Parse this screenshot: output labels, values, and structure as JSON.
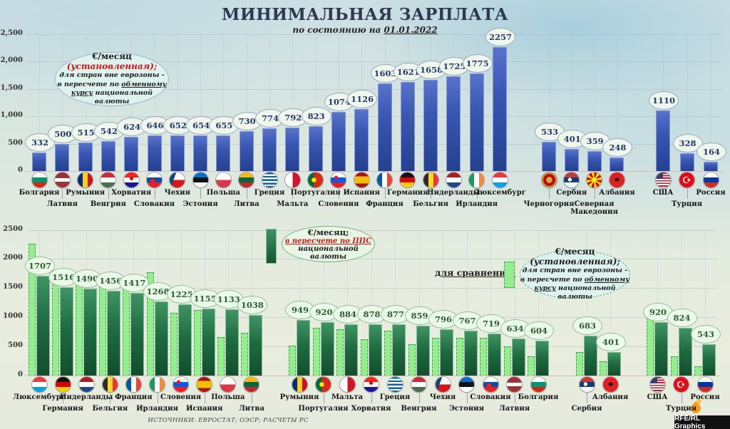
{
  "header": {
    "title": "МИНИМАЛЬНАЯ ЗАРПЛАТА",
    "subtitle_prefix": "по состоянию на ",
    "subtitle_date": "01.01.2022"
  },
  "legend_established": {
    "currency": "€/месяц ",
    "qualifier": "(установленная);",
    "line2": "для стран вне еврозоны -",
    "line3_pre": "в пересчете по ",
    "line3_u": "обменному",
    "line4_u": "курсу",
    "line4_post": " национальной валюты"
  },
  "legend_pps": {
    "currency": "€/месяц;",
    "highlight": "в пересчете по ППС",
    "line3": "национальной валюты"
  },
  "compare_label": "для сравнения:",
  "footer": {
    "sources": "ИСТОЧНИКИ: ЕВРОСТАТ; ОЭСР; РАСЧЕТЫ РС",
    "credit": "RFE/RL Graphics"
  },
  "colors": {
    "bar_established": "#3a58b4",
    "bar_pps": "#1f6c41",
    "bar_compare": "#94ee8e",
    "accent_red": "#cc1416"
  },
  "chart_data": [
    {
      "type": "bar",
      "title": "€/месяц (установленная); для стран вне еврозоны - в пересчете по обменному курсу национальной валюты",
      "xlabel": "",
      "ylabel": "€/месяц",
      "ylim": [
        0,
        2500
      ],
      "ytick_values": [
        0,
        500,
        1000,
        1500,
        2000,
        2500
      ],
      "yticks": [
        "0",
        "500",
        "1,000",
        "1,500",
        "2,000",
        "2,500"
      ],
      "grid": "dotted horizontal",
      "countries": [
        {
          "name": "Болгария",
          "value": 332,
          "flag": "bg",
          "iso": "bulgaria",
          "row": 1,
          "group": 0
        },
        {
          "name": "Латвия",
          "value": 500,
          "flag": "lv",
          "iso": "latvia",
          "row": 2,
          "group": 0
        },
        {
          "name": "Румыния",
          "value": 515,
          "flag": "ro",
          "iso": "romania",
          "row": 1,
          "group": 0
        },
        {
          "name": "Венгрия",
          "value": 542,
          "flag": "hu",
          "iso": "hungary",
          "row": 2,
          "group": 0
        },
        {
          "name": "Хорватия",
          "value": 624,
          "flag": "hr",
          "iso": "croatia",
          "row": 1,
          "group": 0
        },
        {
          "name": "Словакия",
          "value": 646,
          "flag": "sk",
          "iso": "slovakia",
          "row": 2,
          "group": 0
        },
        {
          "name": "Чехия",
          "value": 652,
          "flag": "cz",
          "iso": "czechia",
          "row": 1,
          "group": 0
        },
        {
          "name": "Эстония",
          "value": 654,
          "flag": "ee",
          "iso": "estonia",
          "row": 2,
          "group": 0
        },
        {
          "name": "Польша",
          "value": 655,
          "flag": "pl",
          "iso": "poland",
          "row": 1,
          "group": 0
        },
        {
          "name": "Литва",
          "value": 730,
          "flag": "lt",
          "iso": "lithuania",
          "row": 2,
          "group": 0
        },
        {
          "name": "Греция",
          "value": 774,
          "flag": "gr",
          "iso": "greece",
          "row": 1,
          "group": 0
        },
        {
          "name": "Мальта",
          "value": 792,
          "flag": "mt",
          "iso": "malta",
          "row": 2,
          "group": 0
        },
        {
          "name": "Португалия",
          "value": 823,
          "flag": "pt",
          "iso": "portugal",
          "row": 1,
          "group": 0
        },
        {
          "name": "Словения",
          "value": 1074,
          "flag": "si",
          "iso": "slovenia",
          "row": 2,
          "group": 0
        },
        {
          "name": "Испания",
          "value": 1126,
          "flag": "es",
          "iso": "spain",
          "row": 1,
          "group": 0
        },
        {
          "name": "Франция",
          "value": 1603,
          "flag": "fr",
          "iso": "france",
          "row": 2,
          "group": 0
        },
        {
          "name": "Германия",
          "value": 1621,
          "flag": "de",
          "iso": "germany",
          "row": 1,
          "group": 0
        },
        {
          "name": "Бельгия",
          "value": 1658,
          "flag": "be",
          "iso": "belgium",
          "row": 2,
          "group": 0
        },
        {
          "name": "Нидерланды",
          "value": 1725,
          "flag": "nl",
          "iso": "netherlands",
          "row": 1,
          "group": 0
        },
        {
          "name": "Ирландия",
          "value": 1775,
          "flag": "ie",
          "iso": "ireland",
          "row": 2,
          "group": 0
        },
        {
          "name": "Люксембург",
          "value": 2257,
          "flag": "lu",
          "iso": "luxembourg",
          "row": 1,
          "group": 0
        },
        {
          "name": "Черногория",
          "value": 533,
          "flag": "me",
          "iso": "montenegro",
          "row": 2,
          "group": 1
        },
        {
          "name": "Сербия",
          "value": 401,
          "flag": "rs",
          "iso": "serbia",
          "row": 1,
          "group": 1
        },
        {
          "name": "Северная\nМакедония",
          "value": 359,
          "flag": "mk",
          "iso": "north-macedonia",
          "row": 2,
          "group": 1
        },
        {
          "name": "Албания",
          "value": 248,
          "flag": "al",
          "iso": "albania",
          "row": 1,
          "group": 1
        },
        {
          "name": "США",
          "value": 1110,
          "flag": "us",
          "iso": "usa",
          "row": 1,
          "group": 2
        },
        {
          "name": "Турция",
          "value": 328,
          "flag": "tr",
          "iso": "turkey",
          "row": 2,
          "group": 2
        },
        {
          "name": "Россия",
          "value": 164,
          "flag": "ru",
          "iso": "russia",
          "row": 1,
          "group": 2
        }
      ]
    },
    {
      "type": "bar",
      "title": "€/месяц; в пересчете по ППС национальной валюты",
      "compare_series_name": "€/месяц (установленная); для сравнения",
      "xlabel": "",
      "ylabel": "€/месяц",
      "ylim": [
        0,
        2500
      ],
      "ytick_values": [
        0,
        500,
        1000,
        1500,
        2000,
        2500
      ],
      "yticks": [
        "0",
        "500",
        "1000",
        "1500",
        "2000",
        "2500"
      ],
      "grid": "dotted horizontal",
      "countries": [
        {
          "name": "Люксембург",
          "pps": 1707,
          "est": 2257,
          "flag": "lu",
          "iso": "luxembourg",
          "row": 1,
          "group": 0
        },
        {
          "name": "Германия",
          "pps": 1516,
          "est": 1621,
          "flag": "de",
          "iso": "germany",
          "row": 2,
          "group": 0
        },
        {
          "name": "Нидерланды",
          "pps": 1490,
          "est": 1725,
          "flag": "nl",
          "iso": "netherlands",
          "row": 1,
          "group": 0
        },
        {
          "name": "Бельгия",
          "pps": 1456,
          "est": 1658,
          "flag": "be",
          "iso": "belgium",
          "row": 2,
          "group": 0
        },
        {
          "name": "Франция",
          "pps": 1417,
          "est": 1603,
          "flag": "fr",
          "iso": "france",
          "row": 1,
          "group": 0
        },
        {
          "name": "Ирландия",
          "pps": 1268,
          "est": 1775,
          "flag": "ie",
          "iso": "ireland",
          "row": 2,
          "group": 0
        },
        {
          "name": "Словения",
          "pps": 1225,
          "est": 1074,
          "flag": "si",
          "iso": "slovenia",
          "row": 1,
          "group": 0
        },
        {
          "name": "Испания",
          "pps": 1155,
          "est": 1126,
          "flag": "es",
          "iso": "spain",
          "row": 2,
          "group": 0
        },
        {
          "name": "Польша",
          "pps": 1133,
          "est": 655,
          "flag": "pl",
          "iso": "poland",
          "row": 1,
          "group": 0
        },
        {
          "name": "Литва",
          "pps": 1038,
          "est": 730,
          "flag": "lt",
          "iso": "lithuania",
          "row": 2,
          "group": 0
        },
        {
          "name": "Румыния",
          "pps": 949,
          "est": 515,
          "flag": "ro",
          "iso": "romania",
          "row": 1,
          "group": 1
        },
        {
          "name": "Португалия",
          "pps": 920,
          "est": 823,
          "flag": "pt",
          "iso": "portugal",
          "row": 2,
          "group": 1
        },
        {
          "name": "Мальта",
          "pps": 884,
          "est": 792,
          "flag": "mt",
          "iso": "malta",
          "row": 1,
          "group": 1
        },
        {
          "name": "Хорватия",
          "pps": 878,
          "est": 624,
          "flag": "hr",
          "iso": "croatia",
          "row": 2,
          "group": 1
        },
        {
          "name": "Греция",
          "pps": 877,
          "est": 774,
          "flag": "gr",
          "iso": "greece",
          "row": 1,
          "group": 1
        },
        {
          "name": "Венгрия",
          "pps": 859,
          "est": 542,
          "flag": "hu",
          "iso": "hungary",
          "row": 2,
          "group": 1
        },
        {
          "name": "Чехия",
          "pps": 796,
          "est": 652,
          "flag": "cz",
          "iso": "czechia",
          "row": 1,
          "group": 1
        },
        {
          "name": "Эстония",
          "pps": 767,
          "est": 654,
          "flag": "ee",
          "iso": "estonia",
          "row": 2,
          "group": 1
        },
        {
          "name": "Словакия",
          "pps": 719,
          "est": 646,
          "flag": "sk",
          "iso": "slovakia",
          "row": 1,
          "group": 1
        },
        {
          "name": "Латвия",
          "pps": 634,
          "est": 500,
          "flag": "lv",
          "iso": "latvia",
          "row": 2,
          "group": 1
        },
        {
          "name": "Болгария",
          "pps": 604,
          "est": 332,
          "flag": "bg",
          "iso": "bulgaria",
          "row": 1,
          "group": 1
        },
        {
          "name": "Сербия",
          "pps": 683,
          "est": 401,
          "flag": "rs",
          "iso": "serbia",
          "row": 2,
          "group": 2
        },
        {
          "name": "Албания",
          "pps": 401,
          "est": 248,
          "flag": "al",
          "iso": "albania",
          "row": 1,
          "group": 2
        },
        {
          "name": "США",
          "pps": 920,
          "est": 1110,
          "flag": "us",
          "iso": "usa",
          "row": 1,
          "group": 3
        },
        {
          "name": "Турция",
          "pps": 824,
          "est": 328,
          "flag": "tr",
          "iso": "turkey",
          "row": 2,
          "group": 3
        },
        {
          "name": "Россия",
          "pps": 543,
          "est": 164,
          "flag": "ru",
          "iso": "russia",
          "row": 1,
          "group": 3
        }
      ]
    }
  ]
}
